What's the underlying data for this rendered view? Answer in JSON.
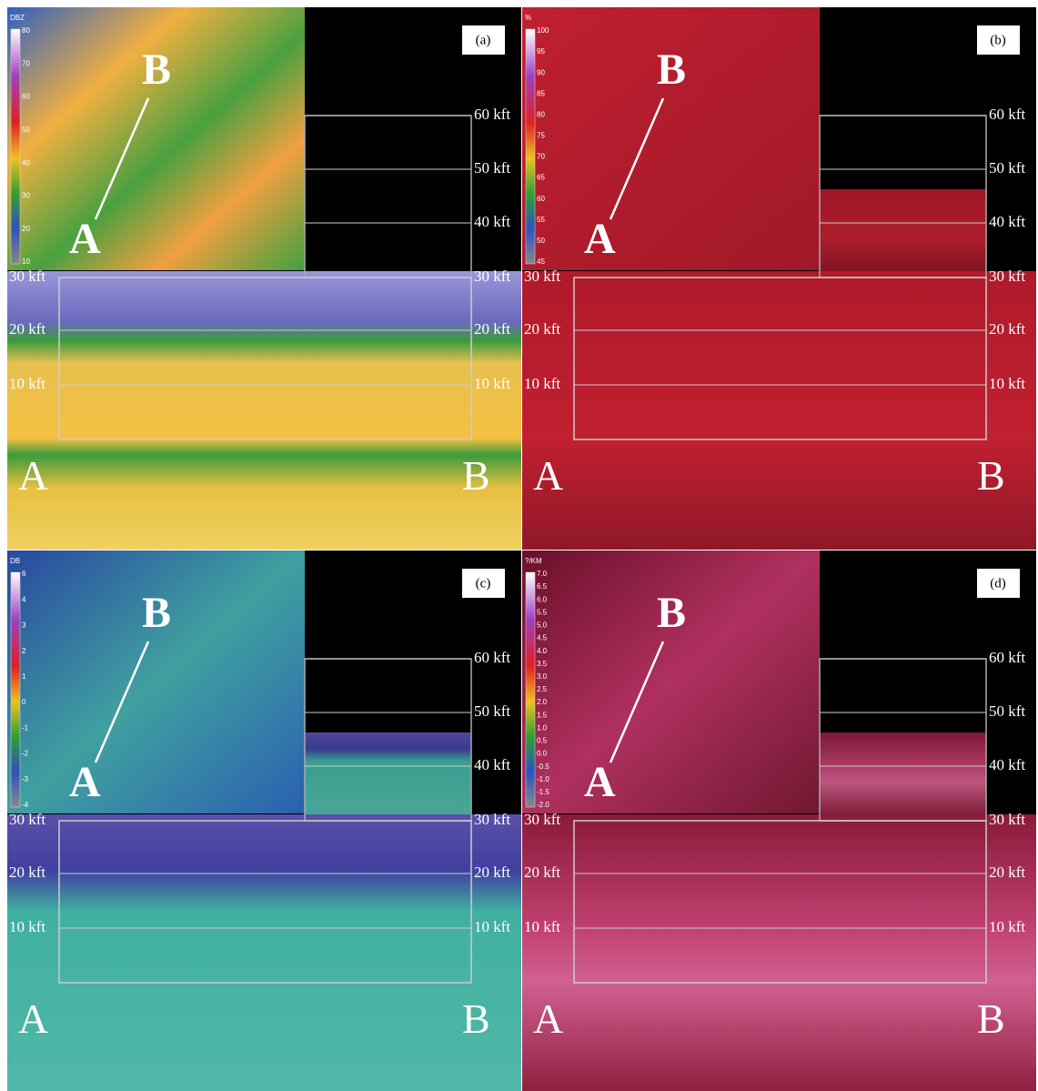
{
  "altitudes": {
    "upper": [
      "60 kft",
      "50 kft",
      "40 kft"
    ],
    "lower": [
      "30 kft",
      "20 kft",
      "10 kft"
    ]
  },
  "panels": [
    {
      "label": "(a)",
      "map_labels": [
        "A",
        "B"
      ],
      "section_labels": [
        "A",
        "B"
      ],
      "colorbar": {
        "title": "DBZ",
        "ticks": [
          "80",
          "70",
          "60",
          "50",
          "40",
          "30",
          "20",
          "10"
        ]
      }
    },
    {
      "label": "(b)",
      "map_labels": [
        "A",
        "B"
      ],
      "section_labels": [
        "A",
        "B"
      ],
      "colorbar": {
        "title": "%",
        "ticks": [
          "100",
          "95",
          "90",
          "85",
          "80",
          "75",
          "70",
          "65",
          "60",
          "55",
          "50",
          "45"
        ]
      }
    },
    {
      "label": "(c)",
      "map_labels": [
        "A",
        "B"
      ],
      "section_labels": [
        "A",
        "B"
      ],
      "colorbar": {
        "title": "DB",
        "ticks": [
          "6",
          "4",
          "3",
          "2",
          "1",
          "0",
          "-1",
          "-2",
          "-3",
          "-4"
        ]
      }
    },
    {
      "label": "(d)",
      "map_labels": [
        "A",
        "B"
      ],
      "section_labels": [
        "A",
        "B"
      ],
      "colorbar": {
        "title": "?/KM",
        "ticks": [
          "7.0",
          "6.5",
          "6.0",
          "5.5",
          "5.0",
          "4.5",
          "4.0",
          "3.5",
          "3.0",
          "2.5",
          "2.0",
          "1.5",
          "1.0",
          "0.5",
          "0.0",
          "-0.5",
          "-1.0",
          "-1.5",
          "-2.0"
        ]
      }
    }
  ]
}
